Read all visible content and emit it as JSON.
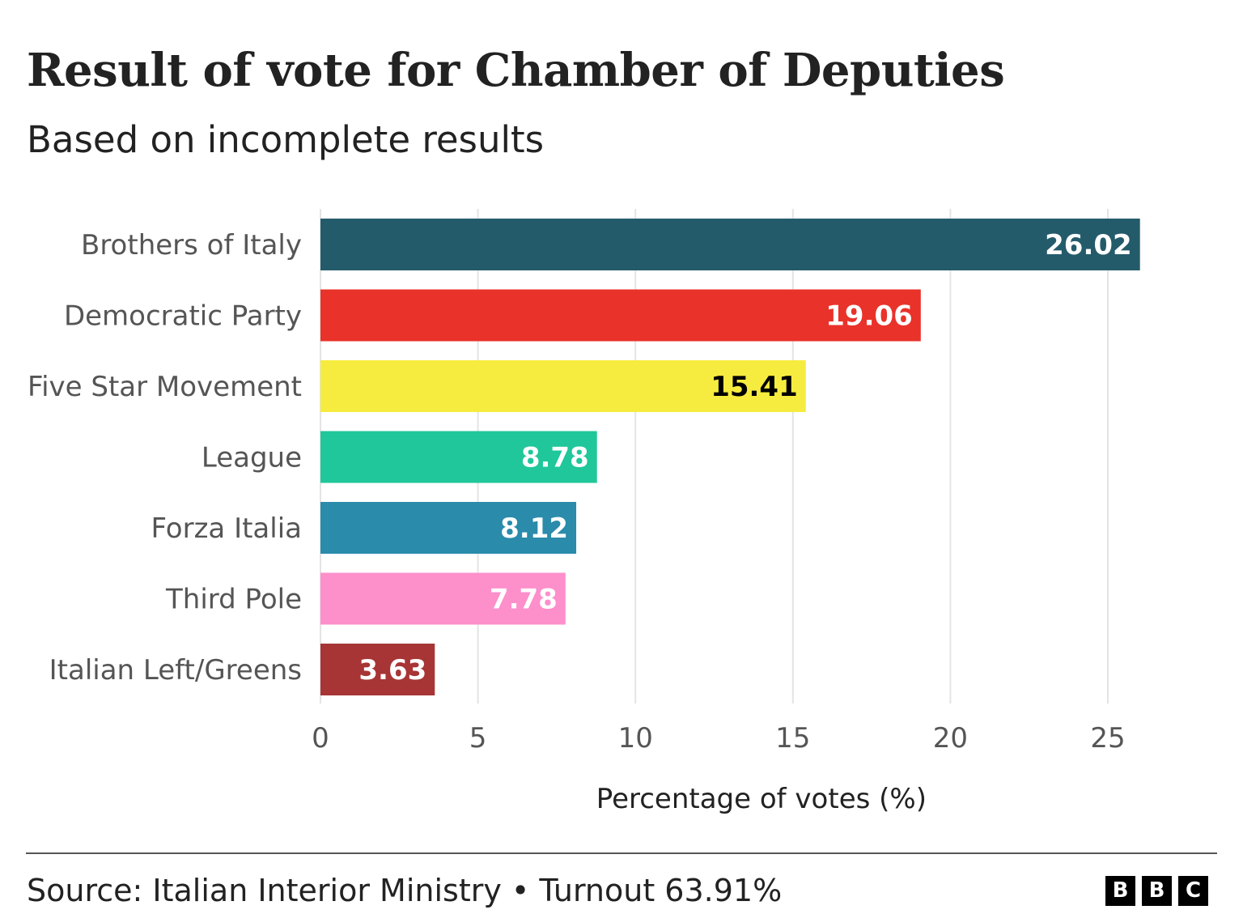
{
  "chart_data": {
    "type": "bar",
    "orientation": "horizontal",
    "title": "Result of vote for Chamber of Deputies",
    "subtitle": "Based on incomplete results",
    "categories": [
      "Brothers of Italy",
      "Democratic Party",
      "Five Star Movement",
      "League",
      "Forza Italia",
      "Third Pole",
      "Italian Left/Greens"
    ],
    "values": [
      26.02,
      19.06,
      15.41,
      8.78,
      8.12,
      7.78,
      3.63
    ],
    "colors": [
      "#245b6b",
      "#e9322a",
      "#f6ec3f",
      "#1fc79a",
      "#2a8bab",
      "#fd8fcb",
      "#a73535"
    ],
    "label_colors": [
      "#ffffff",
      "#ffffff",
      "#000000",
      "#ffffff",
      "#ffffff",
      "#ffffff",
      "#ffffff"
    ],
    "xlabel": "Percentage of votes (%)",
    "xlim": [
      0,
      27
    ],
    "xticks": [
      0,
      5,
      10,
      15,
      20,
      25
    ],
    "grid": true
  },
  "footer": {
    "source": "Source: Italian Interior Ministry • Turnout 63.91%",
    "logo": [
      "B",
      "B",
      "C"
    ]
  }
}
